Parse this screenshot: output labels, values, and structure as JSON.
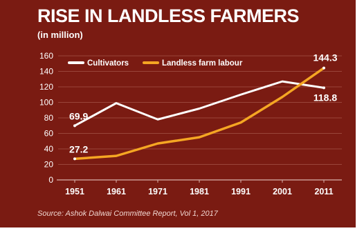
{
  "chart_data": {
    "type": "line",
    "title": "RISE IN LANDLESS FARMERS",
    "subtitle": "(in million)",
    "source": "Source: Ashok Dalwai Committee Report, Vol 1, 2017",
    "categories": [
      "1951",
      "1961",
      "1971",
      "1981",
      "1991",
      "2001",
      "2011"
    ],
    "y_ticks": [
      "0",
      "20",
      "40",
      "60",
      "80",
      "100",
      "120",
      "140",
      "160"
    ],
    "ylim": [
      0,
      160
    ],
    "grid": true,
    "legend_position": "top-left",
    "series": [
      {
        "name": "Cultivators",
        "color": "#ffffff",
        "values": [
          69.9,
          99,
          78,
          92,
          110,
          127,
          118.8
        ]
      },
      {
        "name": "Landless farm labour",
        "color": "#f5a623",
        "values": [
          27.2,
          31,
          47,
          55,
          74,
          107,
          144.3
        ]
      }
    ],
    "data_labels": [
      {
        "series": 0,
        "index": 0,
        "text": "69.9"
      },
      {
        "series": 1,
        "index": 0,
        "text": "27.2"
      },
      {
        "series": 1,
        "index": 6,
        "text": "144.3"
      },
      {
        "series": 0,
        "index": 6,
        "text": "118.8"
      }
    ],
    "colors": {
      "background": "#7a1b12",
      "gridline": "#9a463b",
      "axis": "#d9b3ad",
      "text": "#ffffff"
    }
  }
}
